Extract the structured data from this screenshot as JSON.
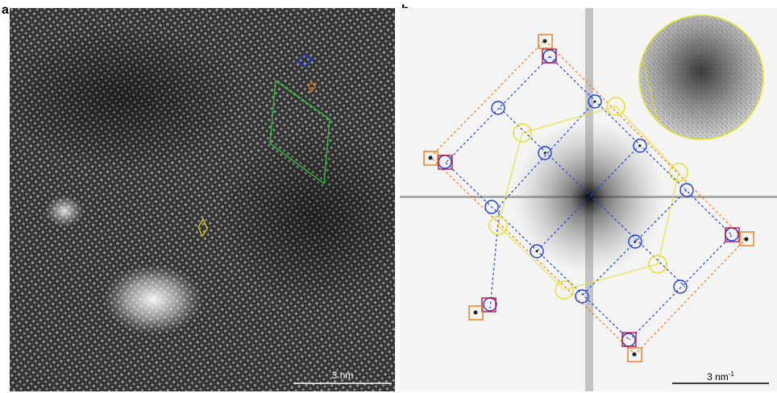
{
  "panel_a": {
    "label": "a",
    "scale_bar_text": "3 nm",
    "description_colors": {
      "green_cell": "#2fbf3a",
      "blue_cell": "#2438d6",
      "orange_cell": "#e0701c",
      "yellow_cell": "#d8cf10"
    }
  },
  "panel_b": {
    "label": "b",
    "scale_bar_text": "3 nm",
    "scale_bar_superscript": "-1",
    "colors": {
      "blue": "#1f3fe0",
      "orange": "#f07818",
      "yellow": "#e6e020",
      "red": "#c0103c"
    }
  }
}
